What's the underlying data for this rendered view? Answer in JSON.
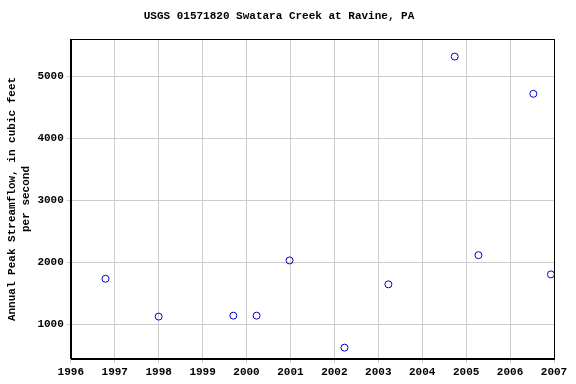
{
  "chart_data": {
    "type": "scatter",
    "title": "USGS 01571820 Swatara Creek at Ravine, PA",
    "y_label": [
      "Annual Peak Streamflow, in cubic feet",
      "per second"
    ],
    "x": [
      1996.79,
      1998.0,
      1999.7,
      2000.23,
      2000.98,
      2002.23,
      2003.23,
      2004.74,
      2005.28,
      2006.53,
      2006.93
    ],
    "values": [
      1740,
      1130,
      1145,
      1145,
      2035,
      630,
      1650,
      5320,
      2120,
      4720,
      1810
    ],
    "color": "#0000cc",
    "marker": "circle",
    "xlim": [
      1996,
      2007
    ],
    "xticks": [
      1996,
      1997,
      1998,
      1999,
      2000,
      2001,
      2002,
      2003,
      2004,
      2005,
      2006,
      2007
    ],
    "ylim": [
      450,
      5600
    ],
    "yticks": [
      1000,
      2000,
      3000,
      4000,
      5000
    ],
    "grid": true
  }
}
